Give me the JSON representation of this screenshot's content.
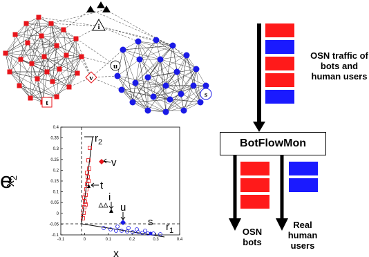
{
  "graph": {
    "node_labels": {
      "v": "v",
      "t": "t",
      "u": "u",
      "s": "s",
      "i": "i"
    },
    "bot_color": "#e8151b",
    "human_color": "#1a1ae6"
  },
  "plot": {
    "series_labels": {
      "r2": "r",
      "r2_sub": "2",
      "r1": "r",
      "r1_sub": "1"
    },
    "point_labels": {
      "v": "v",
      "t": "t",
      "i": "i",
      "u": "u",
      "s": "s"
    },
    "ylabel": "x",
    "ylabel_sub": "2",
    "xlabel": "x",
    "yticks": [
      "0.4",
      "0.35",
      "0.3",
      "0.25",
      "0.2",
      "0.15",
      "0.1",
      "0.05",
      "0",
      "-0.05",
      "-0.1"
    ],
    "xticks": [
      "-0.1",
      "0",
      "0.1",
      "0.2",
      "0.3",
      "0.4"
    ],
    "cropped_left_char": "e"
  },
  "flow": {
    "traffic_label": "OSN traffic of bots and human users",
    "traffic_lines": [
      "OSN traffic of",
      "bots and",
      "human users"
    ],
    "box_label": "BotFlowMon",
    "out_bots_lines": [
      "OSN",
      "bots"
    ],
    "out_humans_lines": [
      "Real",
      "human",
      "users"
    ]
  },
  "colors": {
    "red": "#ff1a1a",
    "blue": "#1a1aff"
  }
}
